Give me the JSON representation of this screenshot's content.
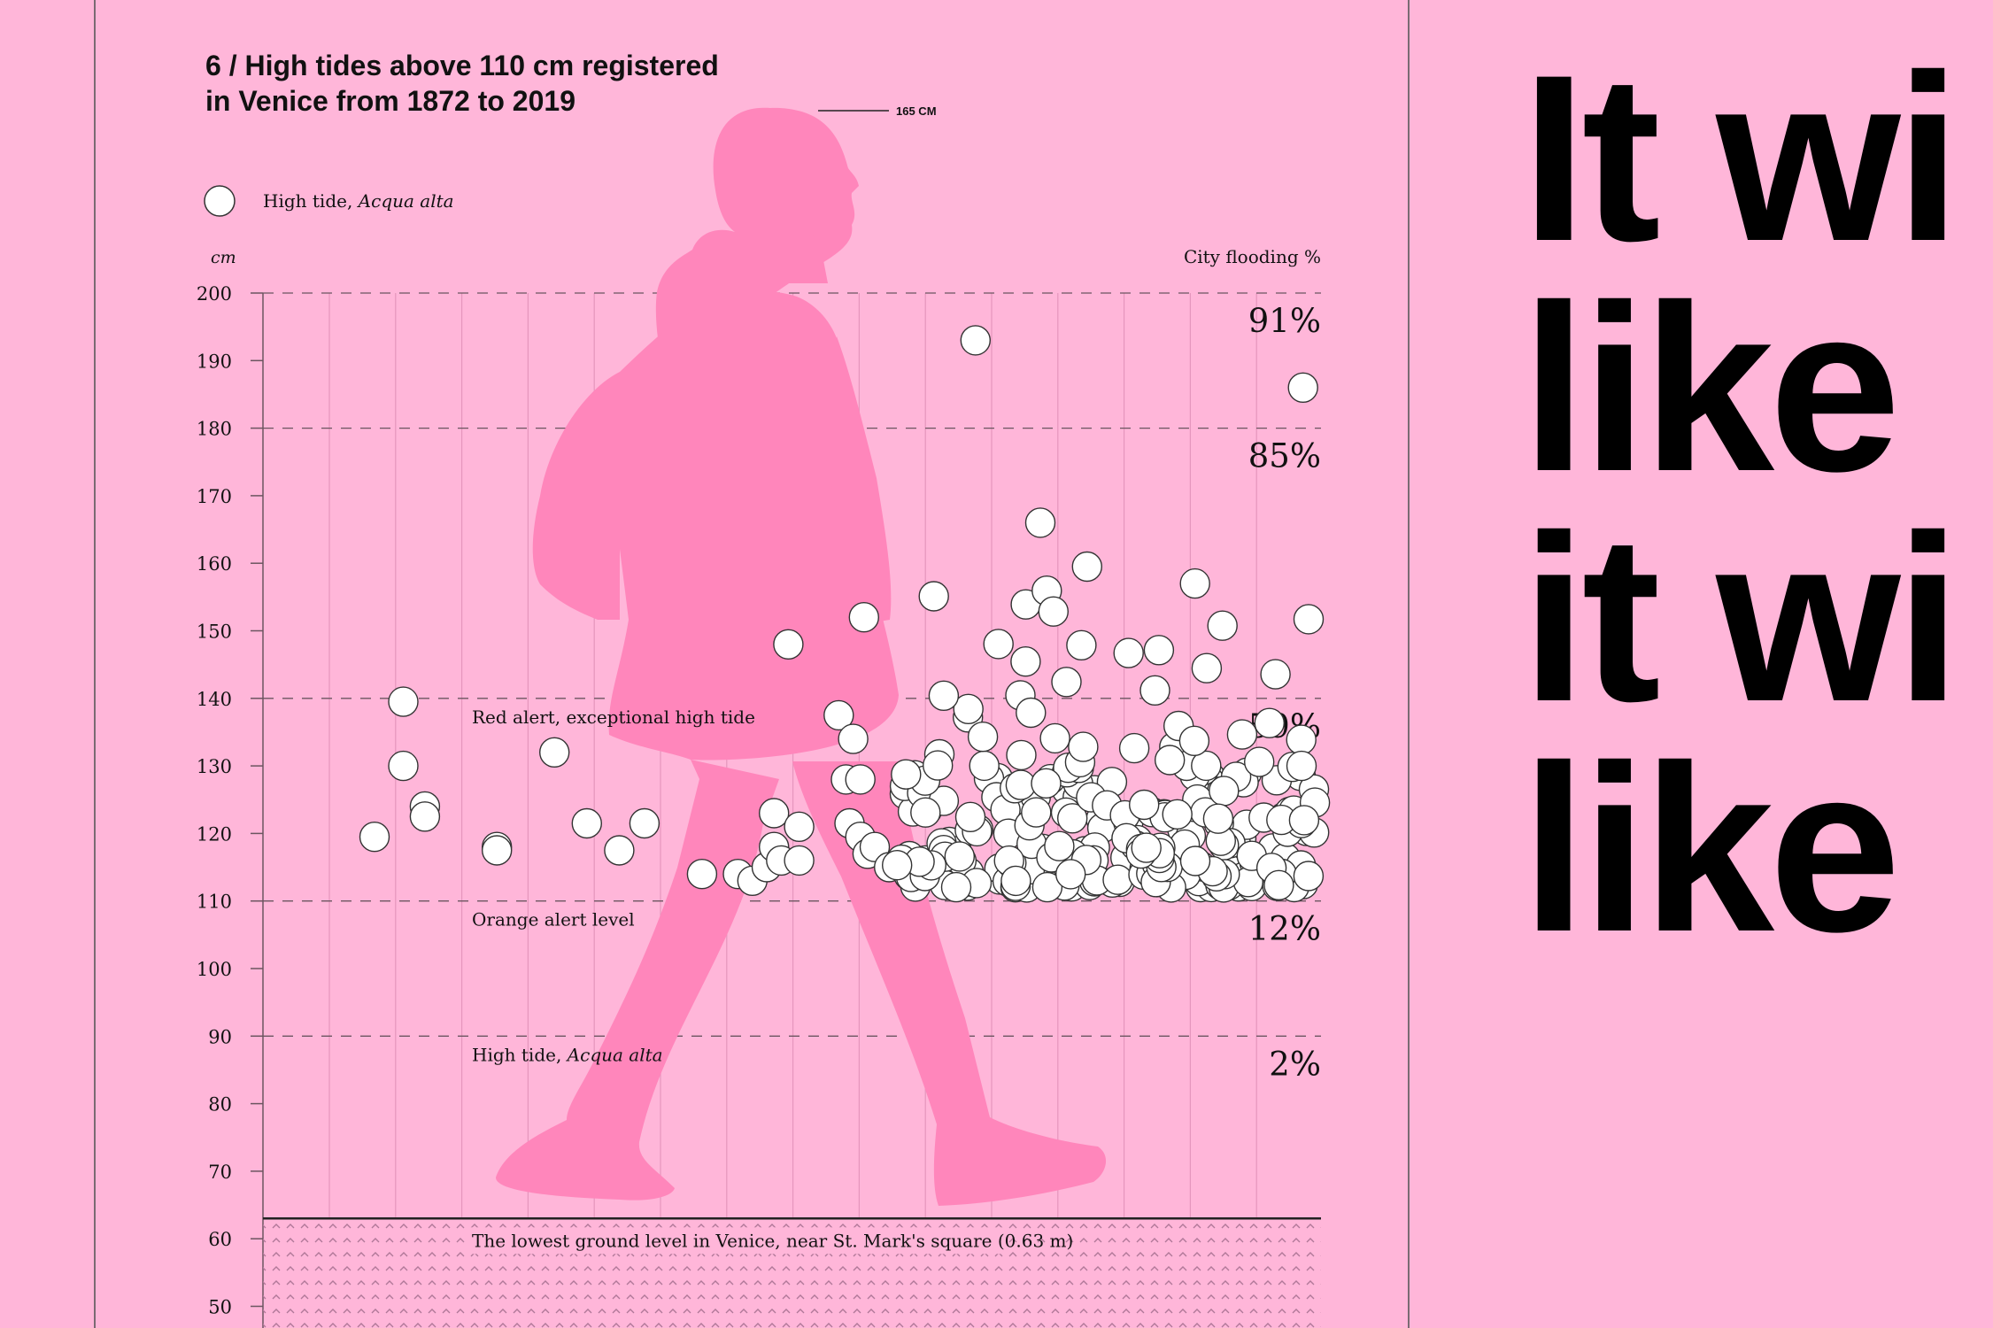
{
  "title_line1": "6 / High tides above 110 cm registered",
  "title_line2": "in Venice from 1872 to 2019",
  "figure_height_label": "165 CM",
  "big_text": [
    "It wi",
    "like",
    "it wi",
    "like"
  ],
  "chart_data": {
    "type": "scatter",
    "title": "6 / High tides above 110 cm registered in Venice from 1872 to 2019",
    "ylabel": "cm",
    "ylim": [
      50,
      200
    ],
    "yticks": [
      200,
      190,
      180,
      170,
      160,
      150,
      140,
      130,
      120,
      110,
      100,
      90,
      80,
      70,
      60,
      50
    ],
    "xlim": [
      1872,
      2019
    ],
    "legend": {
      "label_plain": "High tide, ",
      "label_italic": "Acqua alta",
      "placement": "top-left"
    },
    "right_axis_label": "City flooding %",
    "thresholds": [
      {
        "cm": 200,
        "pct": "91%",
        "label_plain": "",
        "label_italic": ""
      },
      {
        "cm": 180,
        "pct": "85%",
        "label_plain": "",
        "label_italic": ""
      },
      {
        "cm": 140,
        "pct": "59%",
        "label_plain": "Red alert, exceptional high tide",
        "label_italic": ""
      },
      {
        "cm": 110,
        "pct": "12%",
        "label_plain": "Orange alert level",
        "label_italic": ""
      },
      {
        "cm": 90,
        "pct": "2%",
        "label_plain": "High tide, ",
        "label_italic": "Acqua alta"
      }
    ],
    "ground_level": {
      "cm": 63,
      "label": "The lowest ground level in Venice, near St. Mark's square (0.63 m)"
    },
    "points": [
      [
        1887.5,
        119.5
      ],
      [
        1891.5,
        139.5
      ],
      [
        1891.5,
        130
      ],
      [
        1894.5,
        124
      ],
      [
        1894.5,
        122.5
      ],
      [
        1904.5,
        118
      ],
      [
        1904.5,
        117.5
      ],
      [
        1912.5,
        132
      ],
      [
        1917,
        121.5
      ],
      [
        1921.5,
        117.5
      ],
      [
        1925,
        121.5
      ],
      [
        1933,
        114
      ],
      [
        1938,
        114
      ],
      [
        1940,
        113
      ],
      [
        1942,
        115
      ],
      [
        1943,
        123
      ],
      [
        1943,
        118
      ],
      [
        1944,
        116
      ],
      [
        1946.5,
        121
      ],
      [
        1946.5,
        116
      ],
      [
        1945,
        148
      ],
      [
        1952,
        137.5
      ],
      [
        1953,
        128
      ],
      [
        1954,
        134
      ],
      [
        1953.5,
        121.5
      ],
      [
        1955,
        119.5
      ],
      [
        1956,
        117
      ],
      [
        1957,
        118
      ],
      [
        1959,
        115
      ],
      [
        1955,
        128
      ],
      [
        1955.5,
        152
      ],
      [
        1964,
        116
      ],
      [
        1971,
        193
      ],
      [
        1980,
        166
      ],
      [
        1986.5,
        159.5
      ],
      [
        2001.5,
        157
      ],
      [
        2016.5,
        186
      ]
    ],
    "dense_clusters": [
      {
        "x_from": 1960,
        "x_to": 1975,
        "cm_from": 112,
        "cm_to": 129,
        "count": 48
      },
      {
        "x_from": 1975,
        "x_to": 1994,
        "cm_from": 112,
        "cm_to": 130,
        "count": 66
      },
      {
        "x_from": 1994,
        "x_to": 2019,
        "cm_from": 112,
        "cm_to": 130,
        "count": 100
      },
      {
        "x_from": 1965,
        "x_to": 2019,
        "cm_from": 130,
        "cm_to": 156,
        "count": 40
      }
    ]
  }
}
